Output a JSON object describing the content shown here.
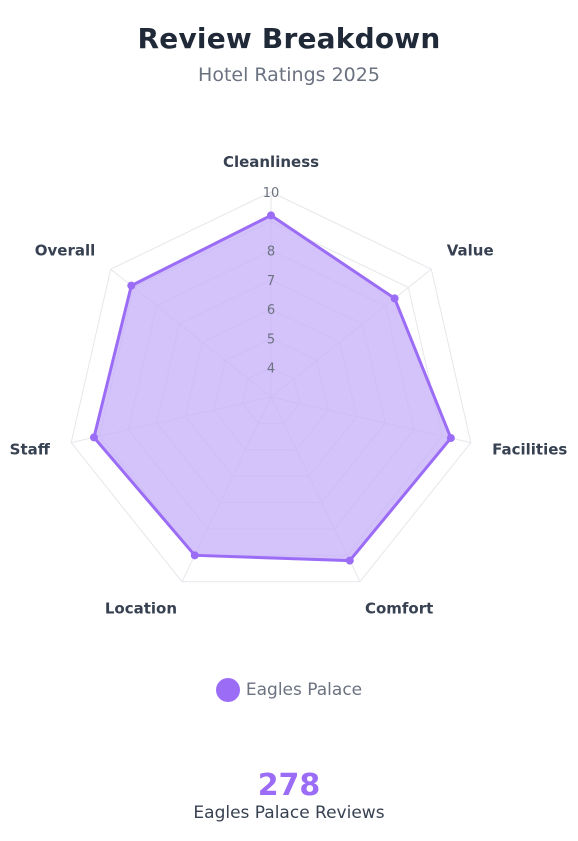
{
  "header": {
    "title": "Review Breakdown",
    "subtitle": "Hotel Ratings 2025"
  },
  "chart_data": {
    "type": "radar",
    "categories": [
      "Cleanliness",
      "Value",
      "Facilities",
      "Comfort",
      "Location",
      "Staff",
      "Overall"
    ],
    "series": [
      {
        "name": "Eagles Palace",
        "values": [
          9.2,
          8.4,
          9.3,
          9.2,
          9.0,
          9.2,
          9.1
        ]
      }
    ],
    "rlim": [
      3,
      10
    ],
    "tick_labels": [
      "4",
      "5",
      "6",
      "7",
      "8",
      "10"
    ],
    "grid": true,
    "legend_position": "bottom"
  },
  "legend": {
    "label": "Eagles Palace"
  },
  "summary": {
    "count": "278",
    "label": "Eagles Palace Reviews"
  },
  "colors": {
    "accent": "#9b6cf5",
    "fill": "#c8b1f8",
    "grid": "#e5e7eb",
    "axis_label": "#374151",
    "tick_label": "#6b7280"
  }
}
